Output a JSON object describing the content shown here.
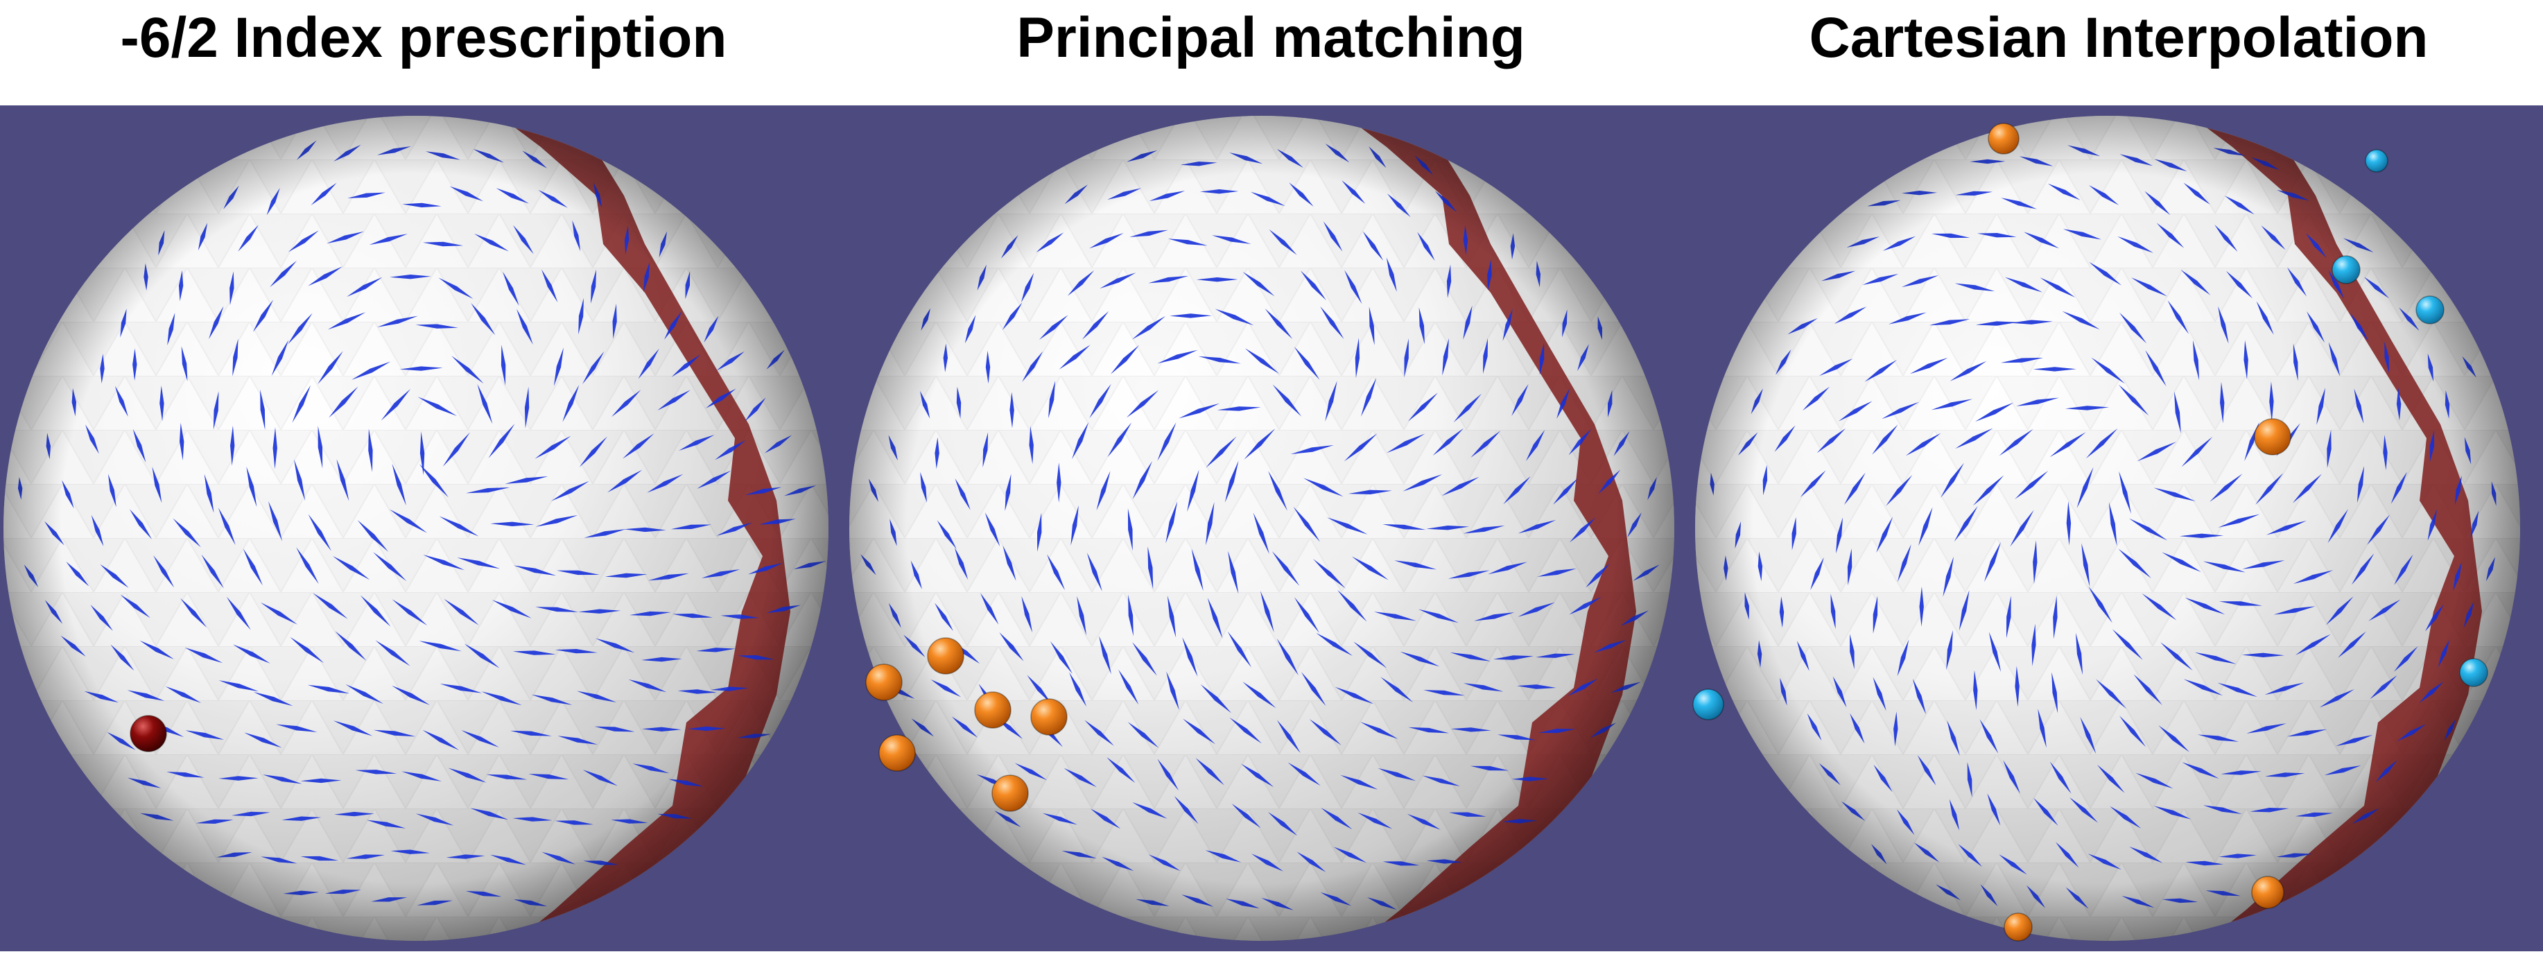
{
  "titles": {
    "panel1": "-6/2 Index prescription",
    "panel2": "Principal matching",
    "panel3": "Cartesian Interpolation"
  },
  "colors": {
    "background": "#4c4a7e",
    "sphere": "#f2f2f2",
    "field_lines": "#1530d8",
    "cut_band": "#7a1616",
    "singularity_dark_red": "#8a0a0a",
    "singularity_orange": "#f07d1a",
    "singularity_cyan": "#26b6ec"
  },
  "panels": [
    {
      "name": "index-prescription",
      "singularity_counts": {
        "dark_red": 1
      }
    },
    {
      "name": "principal-matching",
      "singularity_counts": {
        "orange": 6
      }
    },
    {
      "name": "cartesian-interpolation",
      "singularity_counts": {
        "orange": 4,
        "cyan": 5
      }
    }
  ]
}
